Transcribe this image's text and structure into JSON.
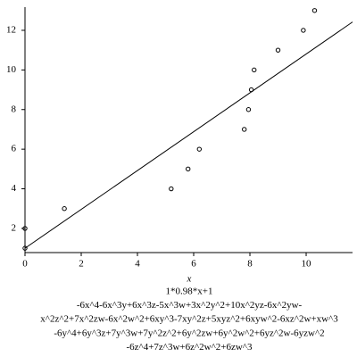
{
  "chart_data": {
    "type": "scatter",
    "xlabel": "x",
    "xlim": [
      0,
      11.65
    ],
    "xticks": [
      0,
      2,
      4,
      6,
      8,
      10
    ],
    "ylim": [
      0.78,
      13.17
    ],
    "yticks": [
      2,
      4,
      6,
      8,
      10,
      12
    ],
    "series": [
      {
        "type": "scatter",
        "color": "#000000",
        "x": [
          0,
          0,
          1.4,
          5.2,
          5.8,
          6.2,
          7.8,
          7.95,
          8.05,
          8.15,
          9,
          9.9,
          10.3
        ],
        "values": [
          1,
          2,
          3,
          4,
          5,
          6,
          7,
          8,
          9,
          10,
          11,
          12,
          13
        ]
      },
      {
        "type": "line",
        "color": "#000000",
        "x": [
          0,
          11.65
        ],
        "values": [
          1,
          12.42
        ]
      }
    ],
    "caption": [
      "1*0.98*x+1",
      "-6x^4-6x^3y+6x^3z-5x^3w+3x^2y^2+10x^2yz-6x^2yw-",
      "x^2z^2+7x^2zw-6x^2w^2+6xy^3-7xy^2z+5xyz^2+6xyw^2-6xz^2w+xw^3",
      "-6y^4+6y^3z+7y^3w+7y^2z^2+6y^2zw+6y^2w^2+6yz^2w-6yzw^2",
      "-6z^4+7z^3w+6z^2w^2+6zw^3"
    ]
  }
}
